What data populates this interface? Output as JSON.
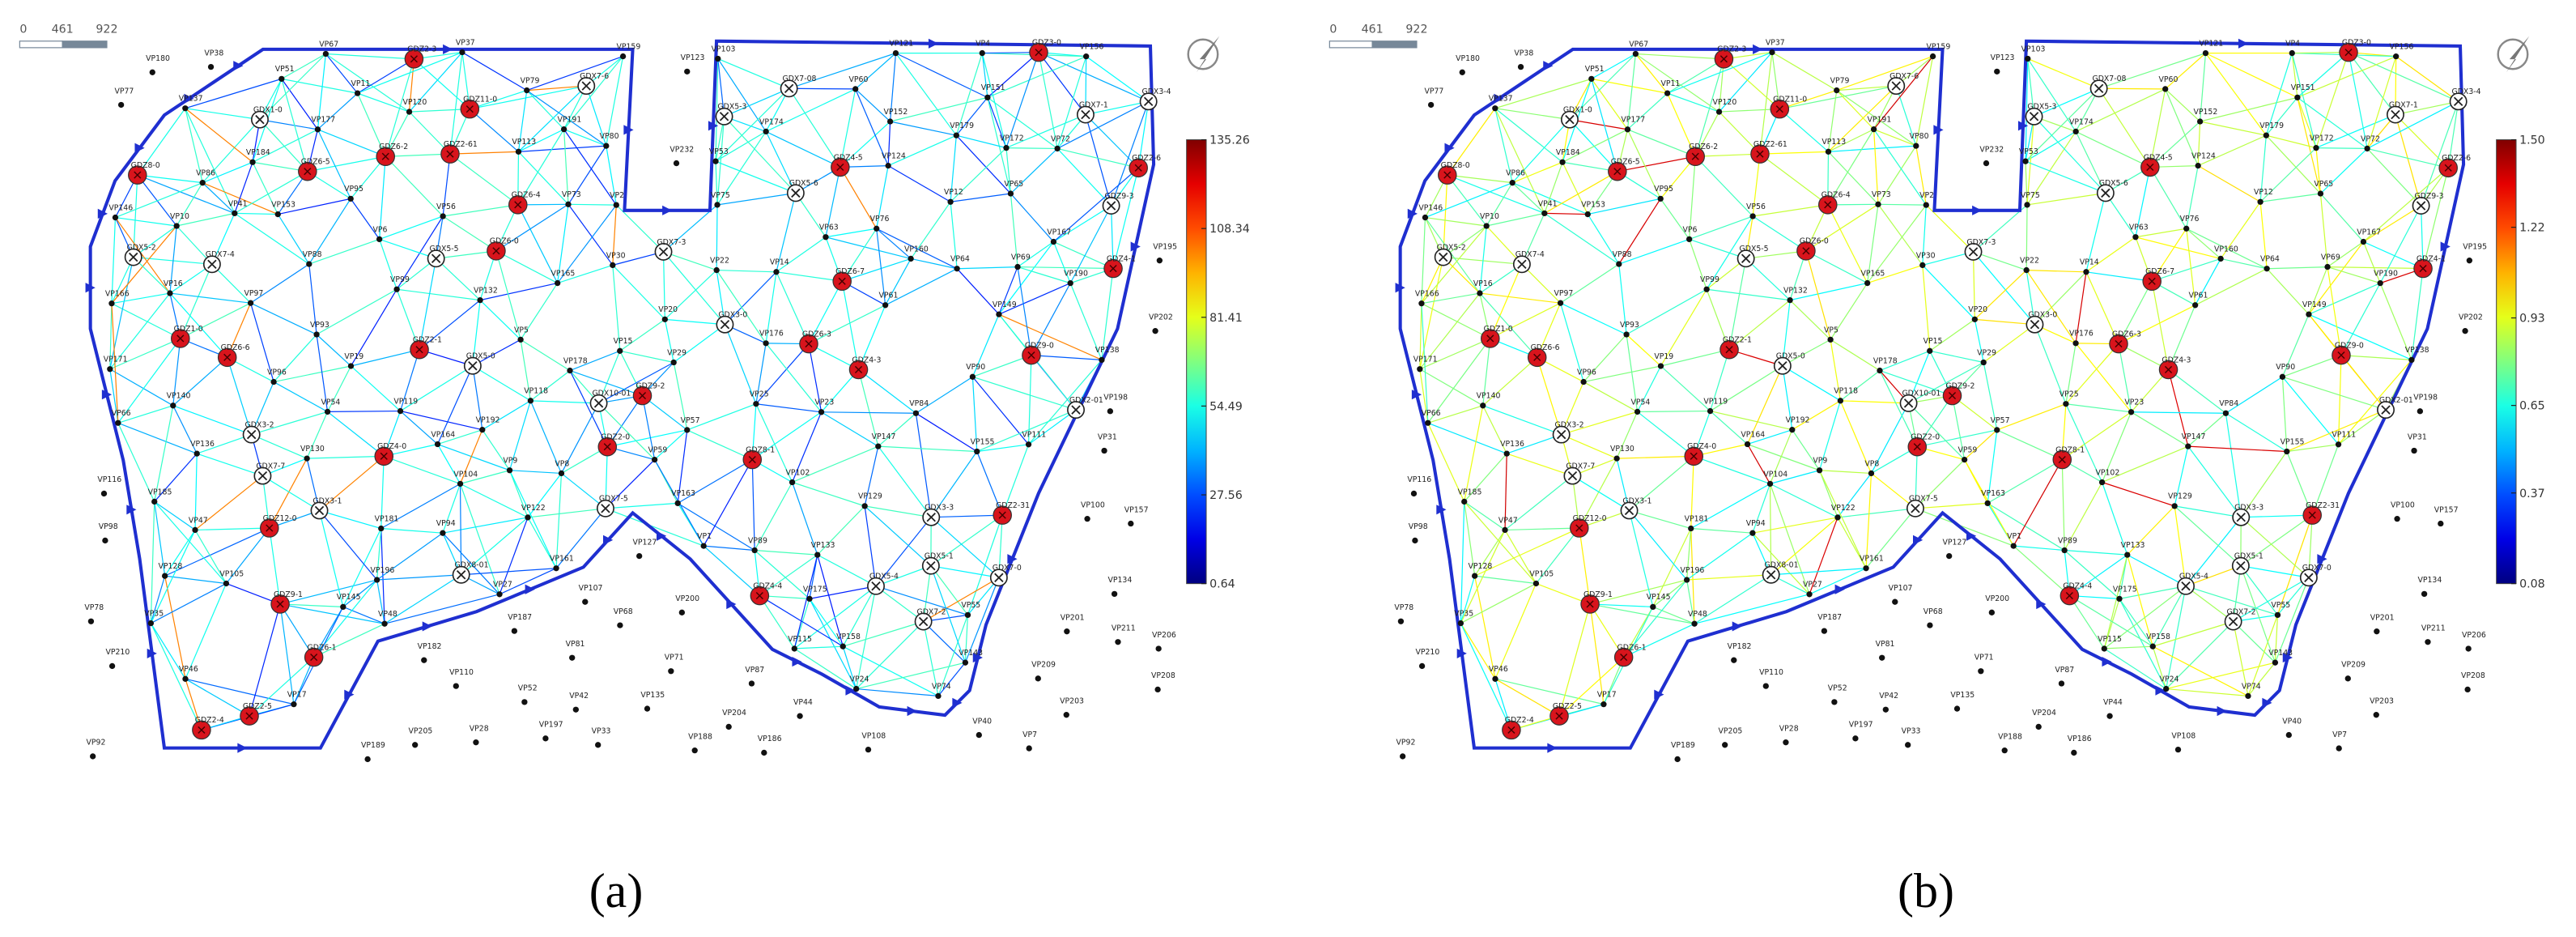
{
  "panels": [
    {
      "label": "(a)",
      "colorbar": {
        "lim": [
          0.64,
          135.26
        ],
        "ticks": [
          0.64,
          27.56,
          54.49,
          81.41,
          108.34,
          135.26
        ]
      }
    },
    {
      "label": "(b)",
      "colorbar": {
        "lim": [
          0.08,
          1.5
        ],
        "ticks": [
          0.08,
          0.37,
          0.65,
          0.93,
          1.22,
          {
            "value": 1.5,
            "label": "1.50"
          }
        ]
      }
    }
  ],
  "scale_bar": [
    "0",
    "461",
    "922"
  ],
  "network": {
    "monitoring_points": [
      "GDZ9-0",
      "GDZ9-1",
      "GDZ9-2",
      "GDZ8-0",
      "GDZ8-1",
      "GDZ6-0",
      "GDZ6-1",
      "GDZ6-2",
      "GDZ6-3",
      "GDZ6-4",
      "GDZ6-5",
      "GDZ6-6",
      "GDZ6-7",
      "GDZ4-0",
      "GDZ4-1",
      "GDZ4-3",
      "GDZ4-4",
      "GDZ4-5",
      "GDZ2-0",
      "GDZ2-1",
      "GDZ2-3",
      "GDZ2-4",
      "GDZ2-5",
      "GDZ2-6",
      "GDZ2-31",
      "GDZ2-61",
      "GDZ11-0",
      "GDZ12-0",
      "GDZ1-0",
      "GDZ3-0"
    ],
    "control_points": [
      "GDZ9-3",
      "GDX7-0",
      "GDX7-1",
      "GDX7-2",
      "GDX7-3",
      "GDX7-4",
      "GDX7-5",
      "GDX7-6",
      "GDX7-7",
      "GDX7-08",
      "GDX5-0",
      "GDX5-1",
      "GDX5-2",
      "GDX5-3",
      "GDX5-4",
      "GDX5-5",
      "GDX5-6",
      "GDX3-0",
      "GDX3-1",
      "GDX3-2",
      "GDX3-3",
      "GDX3-4",
      "GDX1-0",
      "GDX8-01",
      "GDX10-01",
      "GDX2-01"
    ],
    "virtual_points": [
      "VP1",
      "VP2",
      "VP4",
      "VP5",
      "VP6",
      "VP8",
      "VP9",
      "VP10",
      "VP11",
      "VP12",
      "VP14",
      "VP15",
      "VP16",
      "VP17",
      "VP19",
      "VP20",
      "VP22",
      "VP23",
      "VP24",
      "VP25",
      "VP27",
      "VP29",
      "VP30",
      "VP35",
      "VP37",
      "VP41",
      "VP46",
      "VP47",
      "VP48",
      "VP51",
      "VP53",
      "VP54",
      "VP55",
      "VP56",
      "VP57",
      "VP59",
      "VP60",
      "VP61",
      "VP63",
      "VP64",
      "VP65",
      "VP66",
      "VP67",
      "VP69",
      "VP72",
      "VP73",
      "VP74",
      "VP75",
      "VP76",
      "VP79",
      "VP80",
      "VP84",
      "VP86",
      "VP88",
      "VP89",
      "VP90",
      "VP93",
      "VP94",
      "VP95",
      "VP96",
      "VP97",
      "VP99",
      "VP102",
      "VP103",
      "VP104",
      "VP105",
      "VP111",
      "VP113",
      "VP115",
      "VP118",
      "VP119",
      "VP120",
      "VP121",
      "VP122",
      "VP124",
      "VP128",
      "VP129",
      "VP130",
      "VP132",
      "VP133",
      "VP136",
      "VP137",
      "VP138",
      "VP140",
      "VP143",
      "VP145",
      "VP146",
      "VP147",
      "VP149",
      "VP151",
      "VP152",
      "VP153",
      "VP155",
      "VP156",
      "VP158",
      "VP159",
      "VP160",
      "VP161",
      "VP163",
      "VP164",
      "VP165",
      "VP166",
      "VP167",
      "VP171",
      "VP172",
      "VP174",
      "VP175",
      "VP176",
      "VP177",
      "VP178",
      "VP179",
      "VP181",
      "VP184",
      "VP185",
      "VP190",
      "VP191",
      "VP192",
      "VP196"
    ],
    "outer_points": [
      "VP77",
      "VP81",
      "VP68",
      "VP78",
      "VP38",
      "VP33",
      "VP28",
      "VP31",
      "VP7",
      "VP108",
      "VP98",
      "VP127",
      "VP123",
      "VP135",
      "VP100",
      "VP134",
      "VP232",
      "VP107",
      "VP40",
      "VP42",
      "VP116",
      "VP44",
      "VP52",
      "VP87",
      "VP71",
      "VP92",
      "VP110",
      "VP157",
      "VP182",
      "VP187",
      "VP204",
      "VP210",
      "VP209",
      "VP203",
      "VP201",
      "VP205",
      "VP202",
      "VP208",
      "VP206",
      "VP200",
      "VP211",
      "VP197",
      "VP195",
      "VP188",
      "VP198",
      "VP186",
      "VP180",
      "VP189"
    ]
  }
}
